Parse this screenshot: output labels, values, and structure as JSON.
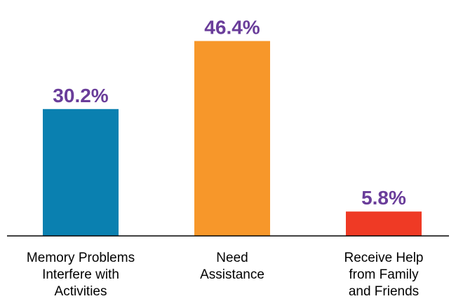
{
  "chart_data": {
    "type": "bar",
    "categories": [
      [
        "Memory Problems",
        "Interfere with",
        "Activities"
      ],
      [
        "Need",
        "Assistance"
      ],
      [
        "Receive Help",
        "from Family",
        "and Friends"
      ]
    ],
    "values": [
      30.2,
      46.4,
      5.8
    ],
    "value_labels": [
      "30.2%",
      "46.4%",
      "5.8%"
    ],
    "bar_colors": [
      "#0a80b0",
      "#f7972a",
      "#ef3a25"
    ],
    "label_color": "#6a3d9a",
    "ylim": [
      0,
      50
    ],
    "grid": false,
    "legend": "none",
    "title": "",
    "xlabel": "",
    "ylabel": ""
  }
}
